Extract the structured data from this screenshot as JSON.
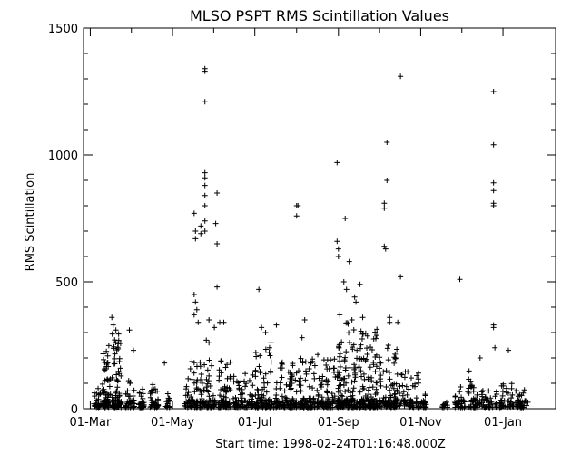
{
  "chart_data": {
    "type": "scatter",
    "title": "MLSO PSPT RMS Scintillation Values",
    "xlabel": "Start time: 1998-02-24T01:16:48.000Z",
    "ylabel": "RMS Scintillation",
    "marker": "plus",
    "grid": false,
    "legend": "none",
    "color": "#000000",
    "xlim": [
      "1998-02-24",
      "1999-02-09"
    ],
    "ylim": [
      0,
      1500
    ],
    "x_ticks": [
      {
        "label": "01-Mar",
        "date": "1998-03-01"
      },
      {
        "label": "01-May",
        "date": "1998-05-01"
      },
      {
        "label": "01-Jul",
        "date": "1998-07-01"
      },
      {
        "label": "01-Sep",
        "date": "1998-09-01"
      },
      {
        "label": "01-Nov",
        "date": "1998-11-01"
      },
      {
        "label": "01-Jan",
        "date": "1999-01-01"
      }
    ],
    "y_ticks": [
      0,
      500,
      1000,
      1500
    ],
    "clusters": [
      {
        "start": "1998-03-03",
        "end": "1998-03-09",
        "low": 5,
        "high": 80,
        "count": 22
      },
      {
        "start": "1998-03-10",
        "end": "1998-03-16",
        "low": 5,
        "high": 250,
        "count": 45
      },
      {
        "start": "1998-03-17",
        "end": "1998-03-24",
        "low": 5,
        "high": 300,
        "count": 55
      },
      {
        "start": "1998-03-27",
        "end": "1998-04-03",
        "low": 5,
        "high": 120,
        "count": 25
      },
      {
        "start": "1998-04-06",
        "end": "1998-04-10",
        "low": 5,
        "high": 90,
        "count": 20
      },
      {
        "start": "1998-04-14",
        "end": "1998-04-21",
        "low": 5,
        "high": 100,
        "count": 22
      },
      {
        "start": "1998-04-26",
        "end": "1998-04-29",
        "low": 5,
        "high": 60,
        "count": 10
      },
      {
        "start": "1998-05-10",
        "end": "1998-05-20",
        "low": 5,
        "high": 200,
        "count": 40
      },
      {
        "start": "1998-05-21",
        "end": "1998-06-02",
        "low": 5,
        "high": 220,
        "count": 50
      },
      {
        "start": "1998-06-04",
        "end": "1998-06-13",
        "low": 5,
        "high": 200,
        "count": 45
      },
      {
        "start": "1998-06-15",
        "end": "1998-06-30",
        "low": 5,
        "high": 150,
        "count": 55
      },
      {
        "start": "1998-07-01",
        "end": "1998-07-14",
        "low": 5,
        "high": 250,
        "count": 60
      },
      {
        "start": "1998-07-15",
        "end": "1998-08-01",
        "low": 5,
        "high": 220,
        "count": 70
      },
      {
        "start": "1998-08-02",
        "end": "1998-08-15",
        "low": 5,
        "high": 200,
        "count": 55
      },
      {
        "start": "1998-08-16",
        "end": "1998-08-30",
        "low": 5,
        "high": 220,
        "count": 55
      },
      {
        "start": "1998-08-31",
        "end": "1998-09-15",
        "low": 5,
        "high": 340,
        "count": 95
      },
      {
        "start": "1998-09-16",
        "end": "1998-09-30",
        "low": 5,
        "high": 320,
        "count": 90
      },
      {
        "start": "1998-10-01",
        "end": "1998-10-15",
        "low": 5,
        "high": 250,
        "count": 65
      },
      {
        "start": "1998-10-16",
        "end": "1998-10-31",
        "low": 5,
        "high": 160,
        "count": 45
      },
      {
        "start": "1998-11-01",
        "end": "1998-11-06",
        "low": 5,
        "high": 60,
        "count": 12
      },
      {
        "start": "1998-11-17",
        "end": "1998-11-21",
        "low": 5,
        "high": 40,
        "count": 8
      },
      {
        "start": "1998-11-26",
        "end": "1998-12-04",
        "low": 5,
        "high": 90,
        "count": 20
      },
      {
        "start": "1998-12-05",
        "end": "1998-12-15",
        "low": 5,
        "high": 150,
        "count": 30
      },
      {
        "start": "1998-12-16",
        "end": "1998-12-28",
        "low": 5,
        "high": 80,
        "count": 25
      },
      {
        "start": "1998-12-29",
        "end": "1999-01-09",
        "low": 5,
        "high": 100,
        "count": 30
      },
      {
        "start": "1999-01-10",
        "end": "1999-01-20",
        "low": 5,
        "high": 80,
        "count": 25
      }
    ],
    "points": [
      [
        "1998-03-17",
        360
      ],
      [
        "1998-03-18",
        330
      ],
      [
        "1998-03-20",
        310
      ],
      [
        "1998-03-30",
        310
      ],
      [
        "1998-04-02",
        230
      ],
      [
        "1998-04-25",
        180
      ],
      [
        "1998-05-17",
        770
      ],
      [
        "1998-05-18",
        700
      ],
      [
        "1998-05-18",
        670
      ],
      [
        "1998-05-17",
        450
      ],
      [
        "1998-05-18",
        420
      ],
      [
        "1998-05-19",
        390
      ],
      [
        "1998-05-17",
        370
      ],
      [
        "1998-05-20",
        340
      ],
      [
        "1998-05-22",
        720
      ],
      [
        "1998-05-22",
        690
      ],
      [
        "1998-05-25",
        1340
      ],
      [
        "1998-05-25",
        1330
      ],
      [
        "1998-05-25",
        1210
      ],
      [
        "1998-05-25",
        930
      ],
      [
        "1998-05-25",
        910
      ],
      [
        "1998-05-25",
        880
      ],
      [
        "1998-05-25",
        840
      ],
      [
        "1998-05-25",
        800
      ],
      [
        "1998-05-25",
        740
      ],
      [
        "1998-05-25",
        700
      ],
      [
        "1998-05-26",
        270
      ],
      [
        "1998-05-28",
        350
      ],
      [
        "1998-05-28",
        260
      ],
      [
        "1998-06-03",
        850
      ],
      [
        "1998-06-02",
        730
      ],
      [
        "1998-06-03",
        650
      ],
      [
        "1998-06-03",
        480
      ],
      [
        "1998-06-05",
        340
      ],
      [
        "1998-06-01",
        320
      ],
      [
        "1998-06-08",
        340
      ],
      [
        "1998-07-04",
        470
      ],
      [
        "1998-07-06",
        320
      ],
      [
        "1998-07-09",
        300
      ],
      [
        "1998-07-13",
        260
      ],
      [
        "1998-07-17",
        330
      ],
      [
        "1998-08-01",
        800
      ],
      [
        "1998-08-01",
        760
      ],
      [
        "1998-08-02",
        800
      ],
      [
        "1998-08-07",
        350
      ],
      [
        "1998-08-05",
        280
      ],
      [
        "1998-08-31",
        970
      ],
      [
        "1998-08-31",
        660
      ],
      [
        "1998-09-01",
        630
      ],
      [
        "1998-09-01",
        600
      ],
      [
        "1998-09-06",
        750
      ],
      [
        "1998-09-05",
        500
      ],
      [
        "1998-09-07",
        470
      ],
      [
        "1998-09-09",
        580
      ],
      [
        "1998-09-13",
        440
      ],
      [
        "1998-09-14",
        420
      ],
      [
        "1998-09-17",
        490
      ],
      [
        "1998-09-02",
        370
      ],
      [
        "1998-09-11",
        350
      ],
      [
        "1998-09-19",
        360
      ],
      [
        "1998-10-05",
        810
      ],
      [
        "1998-10-05",
        790
      ],
      [
        "1998-10-05",
        640
      ],
      [
        "1998-10-06",
        630
      ],
      [
        "1998-10-07",
        1050
      ],
      [
        "1998-10-07",
        900
      ],
      [
        "1998-10-09",
        360
      ],
      [
        "1998-10-09",
        340
      ],
      [
        "1998-10-08",
        250
      ],
      [
        "1998-10-15",
        340
      ],
      [
        "1998-10-17",
        1310
      ],
      [
        "1998-10-17",
        520
      ],
      [
        "1998-11-30",
        510
      ],
      [
        "1998-12-15",
        200
      ],
      [
        "1998-12-25",
        1250
      ],
      [
        "1998-12-25",
        1040
      ],
      [
        "1998-12-25",
        890
      ],
      [
        "1998-12-25",
        860
      ],
      [
        "1998-12-25",
        810
      ],
      [
        "1998-12-25",
        800
      ],
      [
        "1998-12-25",
        330
      ],
      [
        "1998-12-25",
        320
      ],
      [
        "1998-12-26",
        240
      ],
      [
        "1999-01-05",
        230
      ]
    ]
  }
}
